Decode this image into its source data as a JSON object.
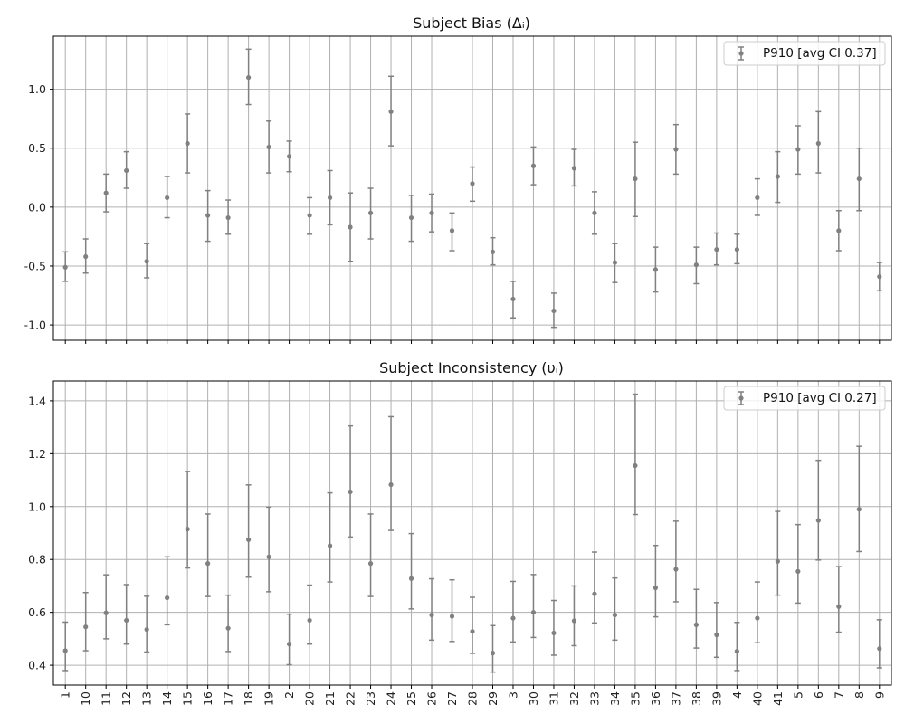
{
  "chart_data": [
    {
      "type": "errorbar",
      "title": "Subject Bias (Δᵢ)",
      "xlabel": "",
      "ylabel": "",
      "ylim": [
        -1.13,
        1.45
      ],
      "yticks": [
        -1.0,
        -0.5,
        0.0,
        0.5,
        1.0
      ],
      "grid": true,
      "legend_position": "top-right",
      "marker_color": "#808080",
      "series": [
        {
          "name": "P910 [avg CI 0.37]",
          "values": [
            -0.51,
            -0.42,
            0.12,
            0.31,
            -0.46,
            0.08,
            0.54,
            -0.07,
            -0.09,
            1.1,
            0.51,
            0.43,
            -0.07,
            0.08,
            -0.17,
            -0.05,
            0.81,
            -0.09,
            -0.05,
            -0.2,
            0.2,
            -0.38,
            -0.78,
            0.35,
            -0.88,
            0.33,
            -0.05,
            -0.47,
            0.24,
            -0.53,
            0.49,
            -0.49,
            -0.36,
            -0.36,
            0.08,
            0.26,
            0.49,
            0.54,
            -0.2,
            0.24,
            -0.59
          ],
          "lower": [
            -0.63,
            -0.56,
            -0.04,
            0.16,
            -0.6,
            -0.09,
            0.29,
            -0.29,
            -0.23,
            0.87,
            0.29,
            0.3,
            -0.23,
            -0.15,
            -0.46,
            -0.27,
            0.52,
            -0.29,
            -0.21,
            -0.37,
            0.05,
            -0.49,
            -0.94,
            0.19,
            -1.02,
            0.18,
            -0.23,
            -0.64,
            -0.08,
            -0.72,
            0.28,
            -0.65,
            -0.49,
            -0.48,
            -0.07,
            0.04,
            0.28,
            0.29,
            -0.37,
            -0.03,
            -0.71
          ],
          "upper": [
            -0.38,
            -0.27,
            0.28,
            0.47,
            -0.31,
            0.26,
            0.79,
            0.14,
            0.06,
            1.34,
            0.73,
            0.56,
            0.08,
            0.31,
            0.12,
            0.16,
            1.11,
            0.1,
            0.11,
            -0.05,
            0.34,
            -0.26,
            -0.63,
            0.51,
            -0.73,
            0.49,
            0.13,
            -0.31,
            0.55,
            -0.34,
            0.7,
            -0.34,
            -0.22,
            -0.23,
            0.24,
            0.47,
            0.69,
            0.81,
            -0.03,
            0.5,
            -0.47
          ]
        }
      ]
    },
    {
      "type": "errorbar",
      "title": "Subject Inconsistency (υᵢ)",
      "xlabel": "",
      "ylabel": "",
      "ylim": [
        0.325,
        1.475
      ],
      "yticks": [
        0.4,
        0.6,
        0.8,
        1.0,
        1.2,
        1.4
      ],
      "grid": true,
      "legend_position": "top-right",
      "marker_color": "#808080",
      "series": [
        {
          "name": "P910 [avg CI 0.27]",
          "values": [
            0.455,
            0.545,
            0.598,
            0.57,
            0.535,
            0.655,
            0.915,
            0.785,
            0.54,
            0.875,
            0.81,
            0.48,
            0.57,
            0.852,
            1.056,
            0.785,
            1.083,
            0.728,
            0.59,
            0.585,
            0.528,
            0.446,
            0.578,
            0.6,
            0.522,
            0.568,
            0.67,
            0.59,
            1.155,
            0.693,
            0.763,
            0.553,
            0.515,
            0.453,
            0.578,
            0.793,
            0.755,
            0.948,
            0.622,
            0.99,
            0.463
          ],
          "lower": [
            0.38,
            0.455,
            0.5,
            0.48,
            0.45,
            0.553,
            0.768,
            0.66,
            0.452,
            0.733,
            0.678,
            0.402,
            0.48,
            0.715,
            0.885,
            0.66,
            0.91,
            0.613,
            0.495,
            0.49,
            0.445,
            0.374,
            0.488,
            0.505,
            0.438,
            0.474,
            0.56,
            0.495,
            0.97,
            0.583,
            0.64,
            0.465,
            0.43,
            0.38,
            0.485,
            0.665,
            0.635,
            0.798,
            0.525,
            0.83,
            0.39
          ],
          "upper": [
            0.563,
            0.675,
            0.742,
            0.705,
            0.661,
            0.81,
            1.133,
            0.972,
            0.665,
            1.082,
            0.998,
            0.593,
            0.703,
            1.052,
            1.305,
            0.972,
            1.34,
            0.898,
            0.727,
            0.723,
            0.657,
            0.55,
            0.717,
            0.743,
            0.645,
            0.7,
            0.828,
            0.73,
            1.425,
            0.853,
            0.945,
            0.687,
            0.637,
            0.562,
            0.715,
            0.982,
            0.932,
            1.175,
            0.773,
            1.228,
            0.572
          ]
        }
      ]
    }
  ],
  "x_categories": [
    "1",
    "10",
    "11",
    "12",
    "13",
    "14",
    "15",
    "16",
    "17",
    "18",
    "19",
    "2",
    "20",
    "21",
    "22",
    "23",
    "24",
    "25",
    "26",
    "27",
    "28",
    "29",
    "3",
    "30",
    "31",
    "32",
    "33",
    "34",
    "35",
    "36",
    "37",
    "38",
    "39",
    "4",
    "40",
    "41",
    "5",
    "6",
    "7",
    "8",
    "9"
  ]
}
